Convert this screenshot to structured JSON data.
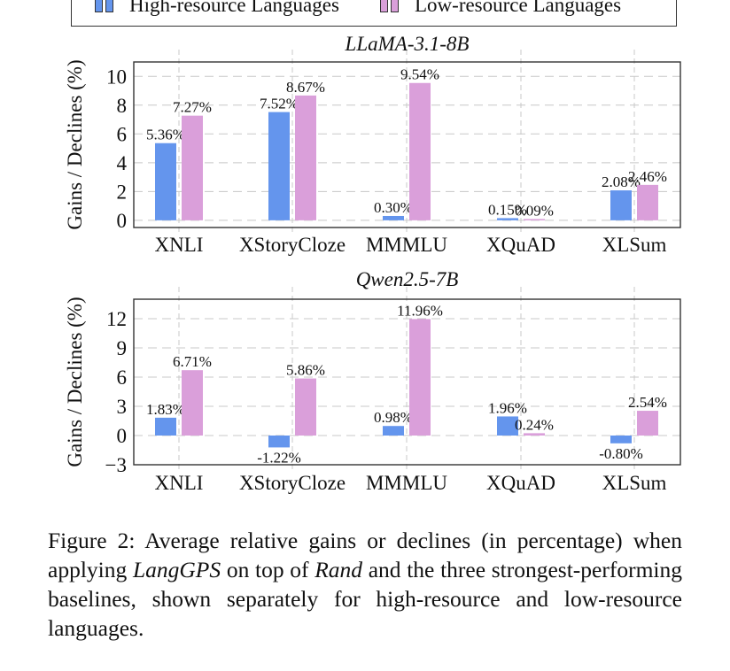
{
  "legend": {
    "items": [
      {
        "label": "High-resource Languages",
        "color": "#6495ED"
      },
      {
        "label": "Low-resource Languages",
        "color": "#DA9FDA"
      }
    ]
  },
  "chart_data": [
    {
      "type": "bar",
      "title": "LLaMA-3.1-8B",
      "ylabel": "Gains / Declines (%)",
      "xlabel": "",
      "categories": [
        "XNLI",
        "XStoryCloze",
        "MMMLU",
        "XQuAD",
        "XLSum"
      ],
      "ylim": [
        -0.5,
        11
      ],
      "yticks": [
        0,
        2,
        4,
        6,
        8,
        10
      ],
      "ytick_labels": [
        "0",
        "2",
        "4",
        "6",
        "8",
        "10"
      ],
      "grid": true,
      "legend": "top",
      "series": [
        {
          "name": "High-resource Languages",
          "color": "#6495ED",
          "values": [
            5.36,
            7.52,
            0.3,
            0.15,
            2.08
          ],
          "labels": [
            "5.36%",
            "7.52%",
            "0.30%",
            "0.15%",
            "2.08%"
          ]
        },
        {
          "name": "Low-resource Languages",
          "color": "#DA9FDA",
          "values": [
            7.27,
            8.67,
            9.54,
            0.09,
            2.46
          ],
          "labels": [
            "7.27%",
            "8.67%",
            "9.54%",
            "0.09%",
            "2.46%"
          ]
        }
      ]
    },
    {
      "type": "bar",
      "title": "Qwen2.5-7B",
      "ylabel": "Gains / Declines (%)",
      "xlabel": "",
      "categories": [
        "XNLI",
        "XStoryCloze",
        "MMMLU",
        "XQuAD",
        "XLSum"
      ],
      "ylim": [
        -3,
        14
      ],
      "yticks": [
        -3,
        0,
        3,
        6,
        9,
        12
      ],
      "ytick_labels": [
        "−3",
        "0",
        "3",
        "6",
        "9",
        "12"
      ],
      "grid": true,
      "legend": "top",
      "series": [
        {
          "name": "High-resource Languages",
          "color": "#6495ED",
          "values": [
            1.83,
            -1.22,
            0.98,
            1.96,
            -0.8
          ],
          "labels": [
            "1.83%",
            "-1.22%",
            "0.98%",
            "1.96%",
            "-0.80%"
          ]
        },
        {
          "name": "Low-resource Languages",
          "color": "#DA9FDA",
          "values": [
            6.71,
            5.86,
            11.96,
            0.24,
            2.54
          ],
          "labels": [
            "6.71%",
            "5.86%",
            "11.96%",
            "0.24%",
            "2.54%"
          ]
        }
      ]
    }
  ],
  "caption": {
    "prefix": "Figure 2: Average relative gains or declines (in percentage) when applying ",
    "method": "LangGPS",
    "middle": " on top of ",
    "baseline": "Rand",
    "suffix": " and the three strongest-performing baselines, shown separately for high-resource and low-resource languages."
  }
}
